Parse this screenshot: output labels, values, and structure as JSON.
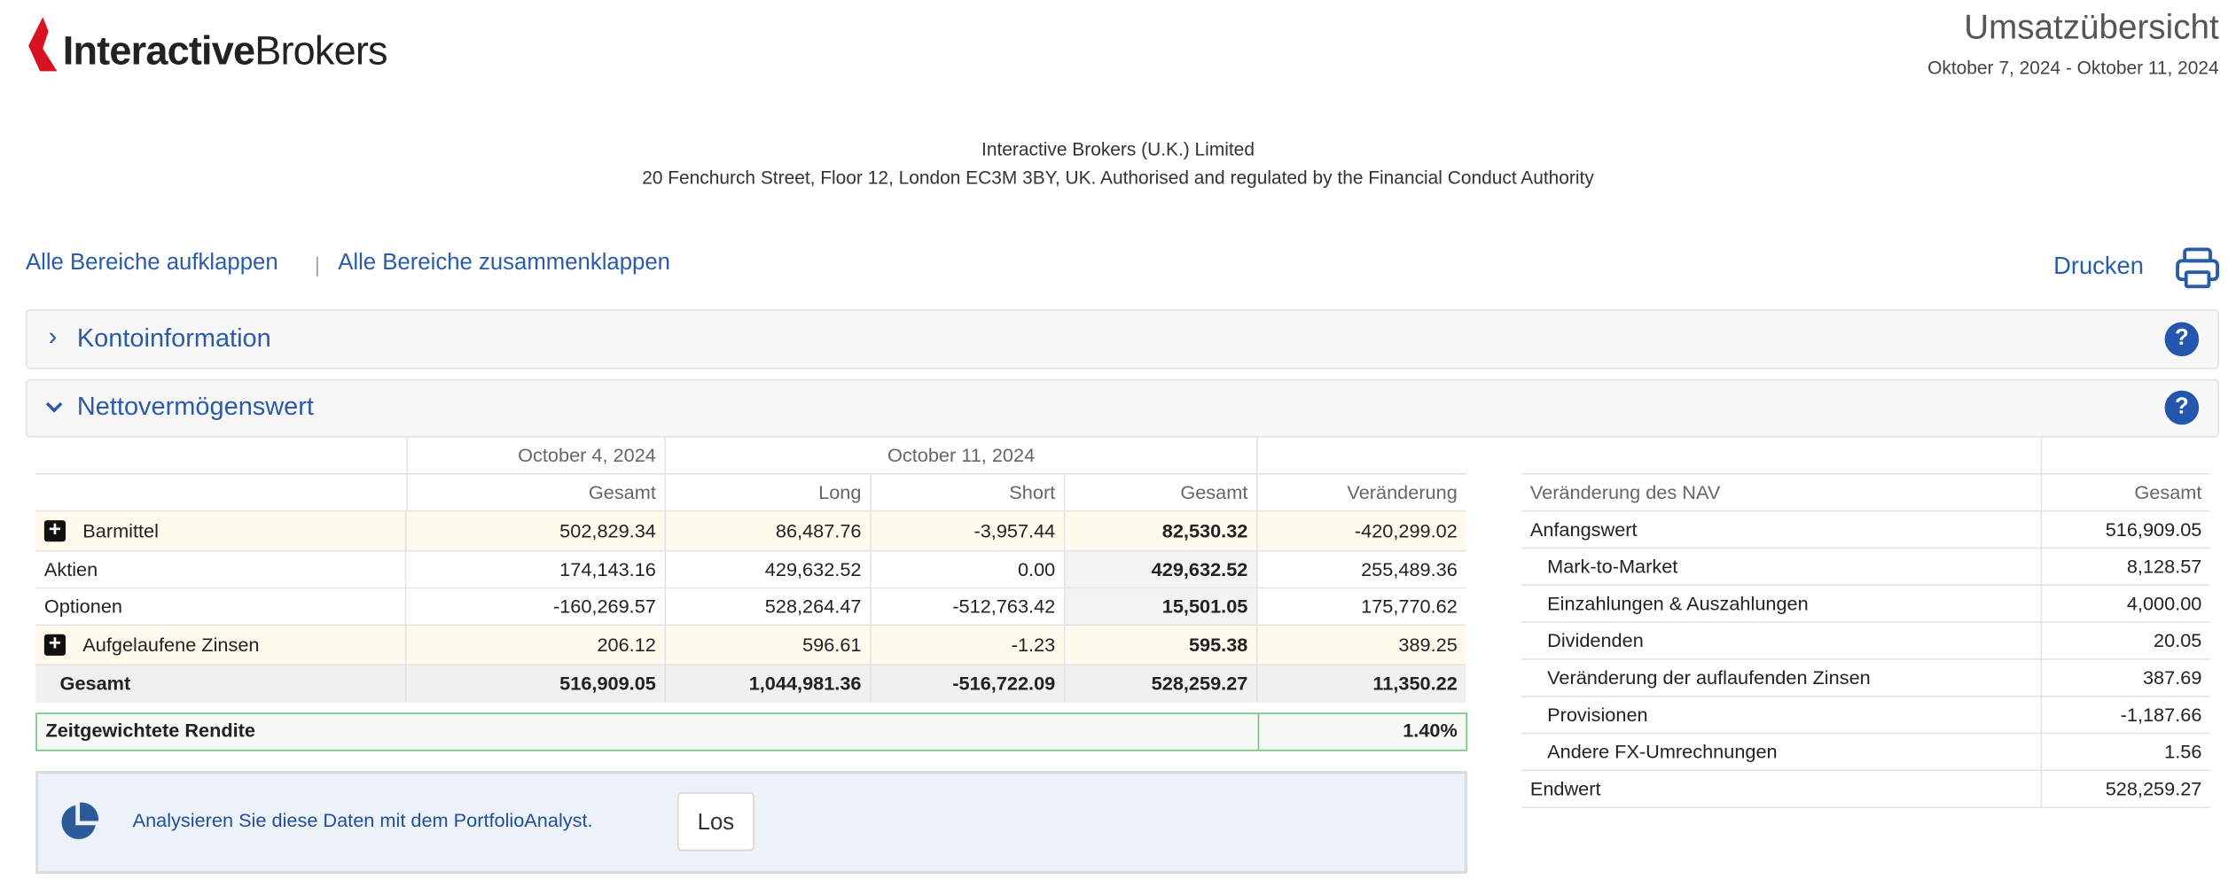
{
  "logo": {
    "part1": "Interactive",
    "part2": "Brokers"
  },
  "header": {
    "title": "Umsatzübersicht",
    "period": "Oktober 7, 2024 - Oktober 11, 2024"
  },
  "company": {
    "name": "Interactive Brokers (U.K.) Limited",
    "address": "20 Fenchurch Street, Floor 12, London EC3M 3BY, UK. Authorised and regulated by the Financial Conduct Authority"
  },
  "links": [
    "Alle Bereiche aufklappen",
    "Alle Bereiche zusammenklappen"
  ],
  "print": "Drucken",
  "sections": [
    "Kontoinformation",
    "Nettovermögenswert"
  ],
  "nav_table": {
    "date_headers": [
      "October 4, 2024",
      "October 11, 2024"
    ],
    "columns": [
      "Gesamt",
      "Long",
      "Short",
      "Gesamt",
      "Veränderung"
    ],
    "rows": [
      [
        "Barmittel",
        "502,829.34",
        "86,487.76",
        "-3,957.44",
        "82,530.32",
        "-420,299.02"
      ],
      [
        "Aktien",
        "174,143.16",
        "429,632.52",
        "0.00",
        "429,632.52",
        "255,489.36"
      ],
      [
        "Optionen",
        "-160,269.57",
        "528,264.47",
        "-512,763.42",
        "15,501.05",
        "175,770.62"
      ],
      [
        "Aufgelaufene Zinsen",
        "206.12",
        "596.61",
        "-1.23",
        "595.38",
        "389.25"
      ],
      [
        "Gesamt",
        "516,909.05",
        "1,044,981.36",
        "-516,722.09",
        "528,259.27",
        "11,350.22"
      ]
    ]
  },
  "twr": {
    "label": "Zeitgewichtete Rendite",
    "value": "1.40%"
  },
  "portfolio": {
    "text": "Analysieren Sie diese Daten mit dem PortfolioAnalyst.",
    "button": "Los"
  },
  "change_table": {
    "columns": [
      "Veränderung des NAV",
      "Gesamt"
    ],
    "rows": [
      [
        "Anfangswert",
        "516,909.05"
      ],
      [
        "Mark-to-Market",
        "8,128.57"
      ],
      [
        "Einzahlungen & Auszahlungen",
        "4,000.00"
      ],
      [
        "Dividenden",
        "20.05"
      ],
      [
        "Veränderung der auflaufenden Zinsen",
        "387.69"
      ],
      [
        "Provisionen",
        "-1,187.66"
      ],
      [
        "Andere FX-Umrechnungen",
        "1.56"
      ],
      [
        "Endwert",
        "528,259.27"
      ]
    ]
  }
}
